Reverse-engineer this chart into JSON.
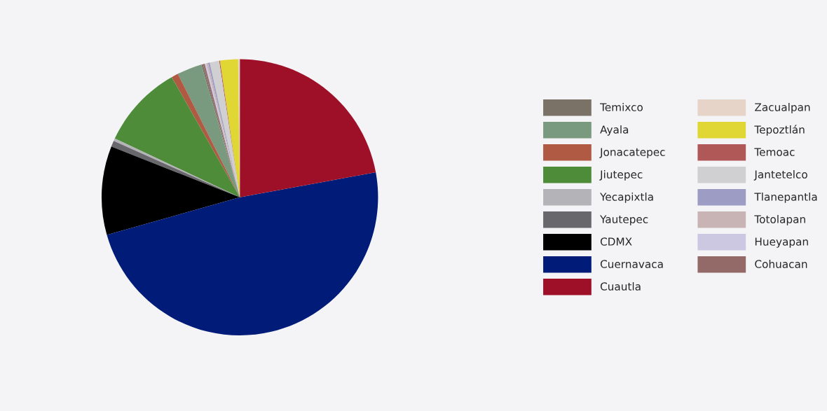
{
  "chart_data": {
    "type": "pie",
    "categories": [
      "Temixco",
      "Ayala",
      "Jonacatepec",
      "Jiutepec",
      "Yecapixtla",
      "Yautepec",
      "CDMX",
      "Cuernavaca",
      "Cuautla",
      "Zacualpan",
      "Tepoztlán",
      "Temoac",
      "Jantetelco",
      "Tlanepantla",
      "Totolapan",
      "Hueyapan",
      "Cohuacan"
    ],
    "values": [
      0.2,
      2.9,
      0.8,
      9.8,
      0.3,
      0.7,
      10.4,
      48.5,
      22.1,
      0.2,
      2.1,
      0.1,
      1.1,
      0.2,
      0.2,
      0.2,
      0.2
    ],
    "colors": [
      "#7a7266",
      "#7a9a80",
      "#b05a44",
      "#4e8c3a",
      "#b4b4b8",
      "#68686c",
      "#000000",
      "#001c78",
      "#9e1028",
      "#e6d4c8",
      "#e0d634",
      "#b05858",
      "#d0d0d2",
      "#9c9cc4",
      "#c8b4b4",
      "#ccc8e2",
      "#946a68"
    ],
    "legend": "right"
  }
}
